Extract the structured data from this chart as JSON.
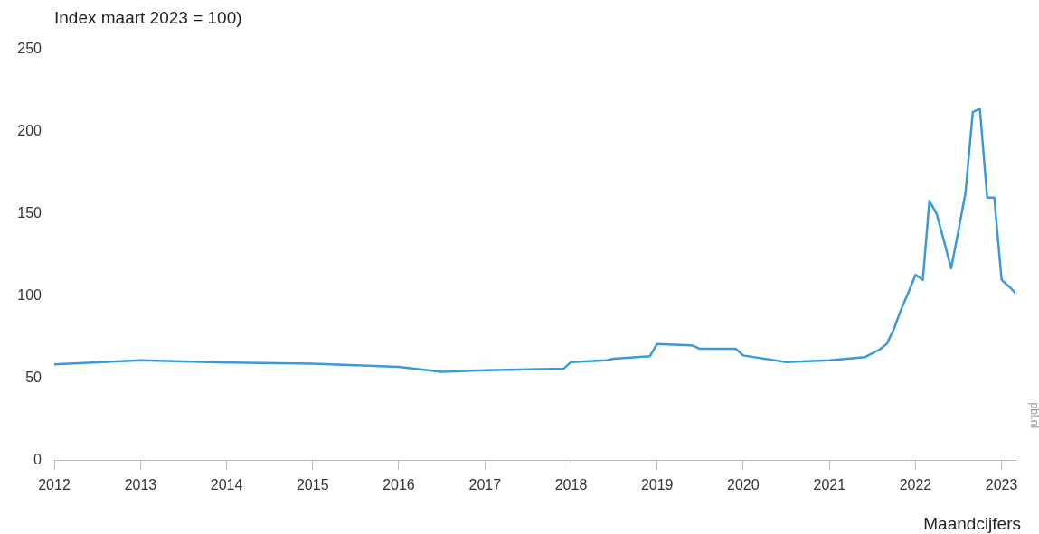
{
  "chart_data": {
    "type": "line",
    "ylabel": "Index maart 2023 = 100)",
    "xlabel": "Maandcijfers",
    "annotations": [
      "pbl.nl"
    ],
    "xlim": [
      "2012-01",
      "2023-03"
    ],
    "xticks": [
      "2012",
      "2013",
      "2014",
      "2015",
      "2016",
      "2017",
      "2018",
      "2019",
      "2020",
      "2021",
      "2022",
      "2023"
    ],
    "ylim": [
      0,
      250
    ],
    "yticks": [
      0,
      50,
      100,
      150,
      200,
      250
    ],
    "grid": false,
    "legend": false,
    "marker": "none",
    "line_style": "solid",
    "series": [
      {
        "color": "#3a9ad9",
        "x": [
          "2012-01",
          "2013-01",
          "2014-01",
          "2015-01",
          "2016-01",
          "2016-07",
          "2017-01",
          "2017-12",
          "2018-01",
          "2018-06",
          "2018-07",
          "2018-12",
          "2019-01",
          "2019-06",
          "2019-07",
          "2019-12",
          "2020-01",
          "2020-07",
          "2021-01",
          "2021-06",
          "2021-08",
          "2021-09",
          "2021-10",
          "2021-11",
          "2021-12",
          "2022-01",
          "2022-02",
          "2022-03",
          "2022-04",
          "2022-05",
          "2022-06",
          "2022-07",
          "2022-08",
          "2022-09",
          "2022-10",
          "2022-11",
          "2022-12",
          "2023-01",
          "2023-02",
          "2023-03"
        ],
        "values": [
          58.6,
          61,
          59.7,
          59,
          57,
          54,
          55,
          56,
          60,
          61,
          62,
          63.5,
          71,
          70,
          68,
          68,
          64,
          60,
          61,
          63,
          67.5,
          71,
          80,
          92,
          102,
          113,
          110,
          158,
          150,
          134,
          117,
          139,
          163,
          212,
          214,
          160,
          160,
          110,
          106,
          102
        ]
      }
    ]
  }
}
